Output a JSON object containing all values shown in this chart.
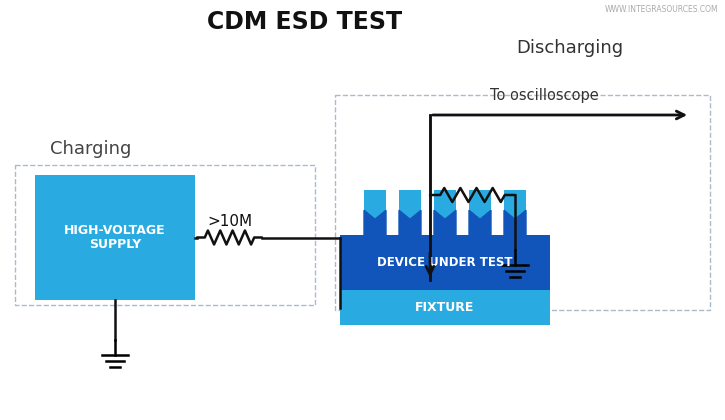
{
  "title": "CDM ESD TEST",
  "watermark": "WWW.INTEGRASOURCES.COM",
  "bg_color": "#ffffff",
  "title_color": "#111111",
  "charging_label": "Charging",
  "discharging_label": "Discharging",
  "hv_label": "HIGH-VOLTAGE\nSUPPLY",
  "hv_color": "#29abe2",
  "resistor_label": ">10M",
  "dut_label": "DEVICE UNDER TEST",
  "dut_color": "#1155bb",
  "fixture_label": "FIXTURE",
  "fixture_color": "#29abe2",
  "osc_label": "To oscilloscope",
  "n_pins": 5,
  "dashed_color": "#aabbcc",
  "wire_color": "#111111"
}
